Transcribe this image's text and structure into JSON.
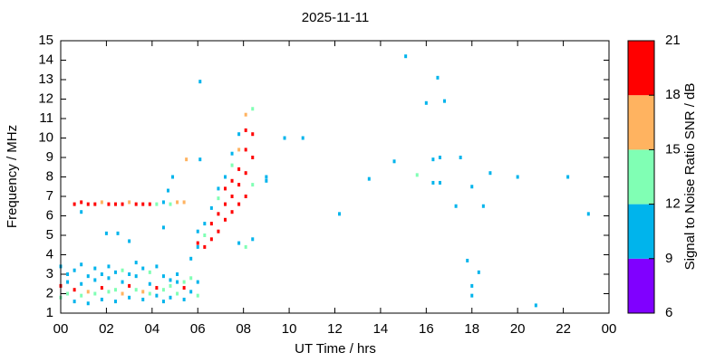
{
  "chart_data": {
    "type": "scatter",
    "title": "2025-11-11",
    "xlabel": "UT Time / hrs",
    "ylabel": "Frequency / MHz",
    "colorbar_label": "Signal to Noise Ratio SNR / dB",
    "xlim": [
      0,
      24
    ],
    "xticks": [
      {
        "value": 0,
        "label": "00"
      },
      {
        "value": 2,
        "label": "02"
      },
      {
        "value": 4,
        "label": "04"
      },
      {
        "value": 6,
        "label": "06"
      },
      {
        "value": 8,
        "label": "08"
      },
      10,
      12,
      14,
      16,
      18,
      20,
      22,
      {
        "value": 24,
        "label": "00"
      }
    ],
    "ylim": [
      1,
      15
    ],
    "yticks": [
      1,
      2,
      3,
      4,
      5,
      6,
      7,
      8,
      9,
      10,
      11,
      12,
      13,
      14,
      15
    ],
    "clim": [
      6,
      21
    ],
    "cticks": [
      6,
      9,
      12,
      15,
      18,
      21
    ],
    "colors": [
      "#8000ff",
      "#00b4ec",
      "#80ffb4",
      "#ffb360",
      "#ff0000"
    ],
    "x": [
      0,
      0,
      0,
      0.3,
      0.3,
      0.3,
      0.6,
      0.6,
      0.6,
      0.9,
      0.9,
      0.9,
      1.2,
      1.2,
      1.2,
      1.5,
      1.5,
      1.5,
      1.8,
      1.8,
      1.8,
      2.1,
      2.1,
      2.1,
      2.4,
      2.4,
      2.4,
      2.7,
      2.7,
      2.7,
      3,
      3,
      3,
      3.3,
      3.3,
      3.3,
      3.6,
      3.6,
      3.6,
      3.9,
      3.9,
      3.9,
      4.2,
      4.2,
      4.2,
      4.5,
      4.5,
      4.5,
      4.8,
      4.8,
      4.8,
      5.1,
      5.1,
      5.1,
      5.4,
      5.4,
      5.4,
      5.7,
      5.7,
      5.7,
      6,
      6,
      6,
      0.6,
      0.9,
      1.2,
      1.5,
      1.8,
      2.1,
      2.4,
      2.7,
      3,
      3.3,
      3.6,
      3.9,
      4.2,
      4.5,
      4.8,
      5.1,
      5.4,
      6,
      6,
      6.3,
      6.3,
      6.3,
      6.6,
      6.6,
      6.6,
      6.9,
      6.9,
      6.9,
      6.9,
      7.2,
      7.2,
      7.2,
      7.2,
      7.5,
      7.5,
      7.5,
      7.5,
      7.5,
      7.8,
      7.8,
      7.8,
      7.8,
      7.8,
      7.8,
      8.1,
      8.1,
      8.1,
      8.1,
      8.1,
      8.1,
      8.4,
      8.4,
      8.4,
      8.4,
      8.4,
      0.9,
      4.7,
      4.9,
      5.5,
      6.1,
      6.1,
      2.0,
      2.5,
      3.0,
      4.5,
      9.0,
      9.0,
      9.8,
      10.6,
      12.2,
      13.5,
      14.6,
      15.1,
      15.6,
      16.0,
      16.3,
      16.3,
      16.5,
      16.6,
      16.6,
      16.8,
      17.3,
      17.5,
      17.8,
      18.0,
      18.0,
      18.0,
      18.3,
      18.5,
      18.8,
      20.0,
      20.8,
      22.2,
      23.1
    ],
    "values": [
      1.8,
      2.4,
      3.4,
      2.0,
      2.6,
      3.0,
      1.6,
      2.2,
      3.2,
      1.9,
      2.5,
      3.5,
      1.5,
      2.1,
      2.9,
      2.0,
      2.7,
      3.3,
      1.7,
      2.3,
      3.0,
      2.1,
      2.8,
      3.4,
      1.6,
      2.2,
      3.1,
      2.0,
      2.6,
      3.2,
      1.8,
      2.4,
      3.0,
      2.2,
      2.9,
      3.6,
      1.7,
      2.1,
      3.3,
      2.0,
      2.5,
      3.1,
      1.9,
      2.3,
      3.4,
      1.6,
      2.2,
      2.9,
      1.8,
      2.4,
      2.7,
      2.0,
      2.6,
      3.0,
      1.7,
      2.3,
      2.6,
      2.1,
      2.8,
      3.8,
      1.9,
      2.6,
      4.4,
      6.6,
      6.7,
      6.6,
      6.6,
      6.7,
      6.6,
      6.6,
      6.6,
      6.7,
      6.6,
      6.6,
      6.6,
      6.6,
      6.7,
      6.6,
      6.7,
      6.7,
      4.6,
      5.2,
      4.4,
      5.0,
      5.6,
      4.8,
      5.6,
      6.4,
      5.2,
      6.1,
      6.9,
      7.4,
      5.8,
      6.6,
      7.4,
      8.0,
      6.2,
      7.0,
      7.8,
      8.6,
      9.2,
      4.6,
      6.6,
      7.6,
      8.4,
      9.4,
      10.2,
      4.4,
      7.0,
      8.2,
      9.4,
      10.4,
      11.2,
      4.8,
      7.6,
      9.0,
      10.2,
      11.5,
      6.2,
      7.3,
      8.0,
      8.9,
      12.9,
      8.9,
      5.1,
      5.1,
      4.7,
      5.4,
      7.8,
      8.0,
      10.0,
      10.0,
      6.1,
      7.9,
      8.8,
      14.2,
      8.1,
      11.8,
      8.9,
      7.7,
      13.1,
      9.0,
      7.7,
      11.9,
      6.5,
      9.0,
      3.7,
      7.5,
      2.4,
      1.9,
      3.1,
      6.5,
      8.2,
      8.0,
      1.4,
      8.0,
      6.1
    ],
    "snr": [
      12,
      18,
      10,
      13,
      10,
      11,
      10,
      19,
      11,
      13,
      11,
      10,
      10,
      17,
      11,
      12,
      10,
      11,
      11,
      19,
      10,
      13,
      11,
      10,
      10,
      12,
      11,
      16,
      10,
      13,
      11,
      19,
      10,
      13,
      11,
      10,
      10,
      17,
      11,
      12,
      10,
      13,
      11,
      19,
      10,
      10,
      13,
      11,
      11,
      12,
      10,
      13,
      10,
      11,
      10,
      19,
      13,
      11,
      13,
      10,
      13,
      10,
      11,
      19,
      18,
      20,
      19,
      16,
      19,
      20,
      19,
      17,
      19,
      20,
      19,
      12,
      11,
      13,
      16,
      17,
      19,
      10,
      19,
      13,
      11,
      19,
      20,
      11,
      19,
      20,
      13,
      11,
      20,
      19,
      20,
      10,
      19,
      20,
      19,
      13,
      11,
      11,
      20,
      19,
      20,
      16,
      11,
      13,
      19,
      20,
      19,
      20,
      16,
      11,
      13,
      19,
      20,
      13,
      10,
      10,
      11,
      17,
      11,
      11,
      10,
      10,
      10,
      10,
      11,
      11,
      11,
      11,
      10,
      11,
      11,
      10,
      13,
      10,
      11,
      11,
      10,
      11,
      11,
      10,
      11,
      11,
      10,
      11,
      10,
      11,
      11,
      11,
      11,
      11,
      10,
      11,
      10
    ]
  }
}
